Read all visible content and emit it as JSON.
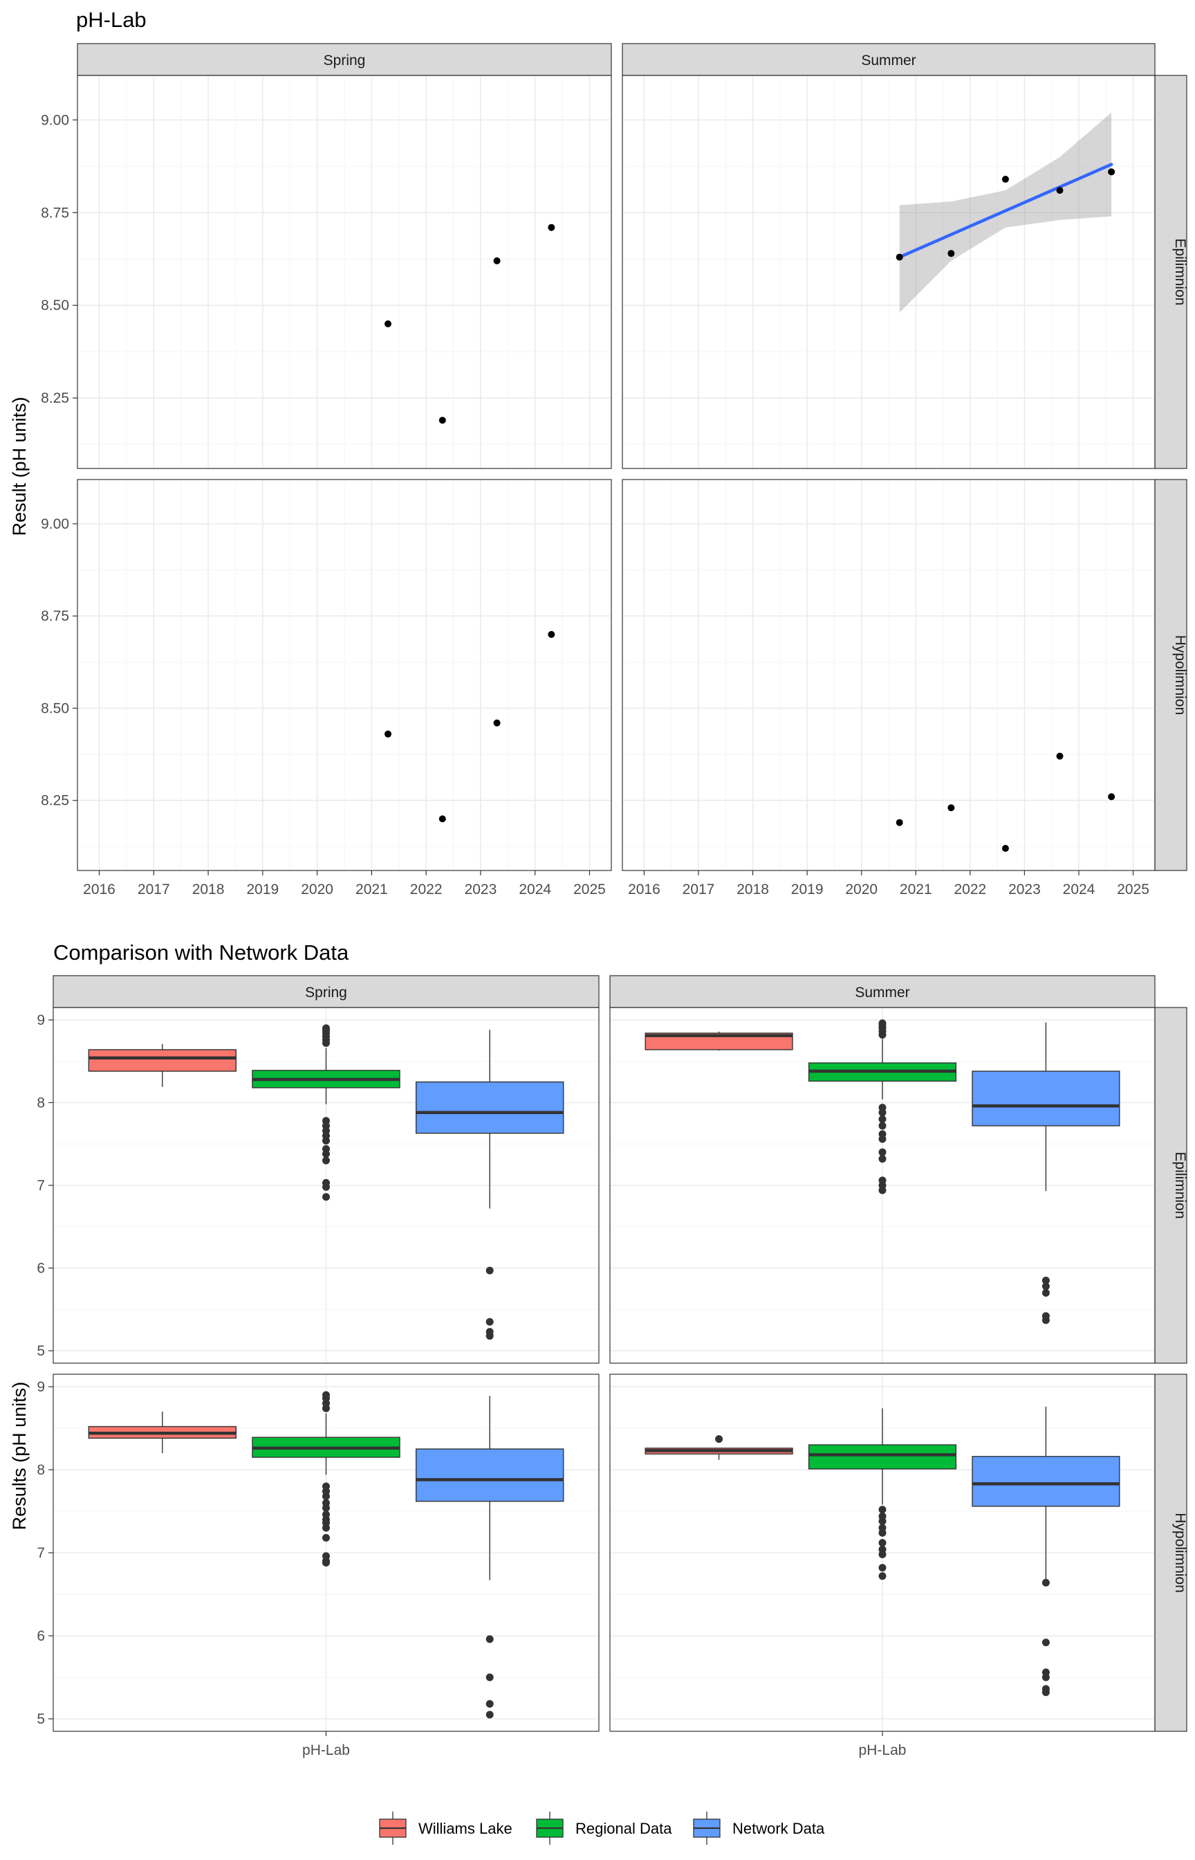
{
  "chart_data": [
    {
      "type": "scatter",
      "title": "pH-Lab",
      "ylabel": "Result (pH units)",
      "xlabel": "",
      "x_ticks": [
        "2016",
        "2017",
        "2018",
        "2019",
        "2020",
        "2021",
        "2022",
        "2023",
        "2024",
        "2025"
      ],
      "xlim": [
        2015.6,
        2025.4
      ],
      "y_ticks": [
        "8.25",
        "8.50",
        "8.75",
        "9.00"
      ],
      "ylim": [
        8.06,
        9.12
      ],
      "grid": true,
      "columns": [
        "Spring",
        "Summer"
      ],
      "rows": [
        "Epilimnion",
        "Hypolimnion"
      ],
      "panels": [
        {
          "col": "Spring",
          "row": "Epilimnion",
          "points": [
            {
              "x": 2021.3,
              "y": 8.45
            },
            {
              "x": 2022.3,
              "y": 8.19
            },
            {
              "x": 2023.3,
              "y": 8.62
            },
            {
              "x": 2024.3,
              "y": 8.71
            }
          ]
        },
        {
          "col": "Summer",
          "row": "Epilimnion",
          "points": [
            {
              "x": 2020.7,
              "y": 8.63
            },
            {
              "x": 2021.65,
              "y": 8.64
            },
            {
              "x": 2022.65,
              "y": 8.84
            },
            {
              "x": 2023.65,
              "y": 8.81
            },
            {
              "x": 2024.6,
              "y": 8.86
            }
          ],
          "trend": {
            "x": [
              2020.7,
              2024.6
            ],
            "y": [
              8.63,
              8.88
            ],
            "ci_x": [
              2020.7,
              2021.65,
              2022.65,
              2023.65,
              2024.6
            ],
            "ci_lower": [
              8.48,
              8.62,
              8.71,
              8.73,
              8.74
            ],
            "ci_upper": [
              8.77,
              8.78,
              8.81,
              8.9,
              9.02
            ]
          }
        },
        {
          "col": "Spring",
          "row": "Hypolimnion",
          "points": [
            {
              "x": 2021.3,
              "y": 8.43
            },
            {
              "x": 2022.3,
              "y": 8.2
            },
            {
              "x": 2023.3,
              "y": 8.46
            },
            {
              "x": 2024.3,
              "y": 8.7
            }
          ]
        },
        {
          "col": "Summer",
          "row": "Hypolimnion",
          "points": [
            {
              "x": 2020.7,
              "y": 8.19
            },
            {
              "x": 2021.65,
              "y": 8.23
            },
            {
              "x": 2022.65,
              "y": 8.12
            },
            {
              "x": 2023.65,
              "y": 8.37
            },
            {
              "x": 2024.6,
              "y": 8.26
            }
          ]
        }
      ]
    },
    {
      "type": "boxplot",
      "title": "Comparison with Network Data",
      "ylabel": "Results (pH units)",
      "x_tick": "pH-Lab",
      "y_ticks": [
        "5",
        "6",
        "7",
        "8",
        "9"
      ],
      "ylim": [
        4.85,
        9.15
      ],
      "grid": true,
      "columns": [
        "Spring",
        "Summer"
      ],
      "rows": [
        "Epilimnion",
        "Hypolimnion"
      ],
      "legend": {
        "position": "bottom",
        "entries": [
          {
            "name": "Williams Lake",
            "color": "#F8766D"
          },
          {
            "name": "Regional Data",
            "color": "#00BA38"
          },
          {
            "name": "Network Data",
            "color": "#619CFF"
          }
        ]
      },
      "panels": [
        {
          "col": "Spring",
          "row": "Epilimnion",
          "boxes": [
            {
              "series": "Williams Lake",
              "whisker_low": 8.19,
              "q1": 8.38,
              "median": 8.54,
              "q3": 8.64,
              "whisker_high": 8.71,
              "outliers": []
            },
            {
              "series": "Regional Data",
              "whisker_low": 7.98,
              "q1": 8.18,
              "median": 8.28,
              "q3": 8.39,
              "whisker_high": 8.66,
              "outliers": [
                8.72,
                8.76,
                8.8,
                8.84,
                8.87,
                8.9,
                7.78,
                7.72,
                7.66,
                7.6,
                7.54,
                7.44,
                7.38,
                7.3,
                7.03,
                6.98,
                6.86
              ]
            },
            {
              "series": "Network Data",
              "whisker_low": 6.72,
              "q1": 7.63,
              "median": 7.88,
              "q3": 8.25,
              "whisker_high": 8.88,
              "outliers": [
                5.97,
                5.35,
                5.23,
                5.18
              ]
            }
          ]
        },
        {
          "col": "Summer",
          "row": "Epilimnion",
          "boxes": [
            {
              "series": "Williams Lake",
              "whisker_low": 8.63,
              "q1": 8.64,
              "median": 8.81,
              "q3": 8.84,
              "whisker_high": 8.86,
              "outliers": []
            },
            {
              "series": "Regional Data",
              "whisker_low": 8.04,
              "q1": 8.26,
              "median": 8.38,
              "q3": 8.48,
              "whisker_high": 8.77,
              "outliers": [
                8.82,
                8.86,
                8.9,
                8.93,
                8.96,
                7.94,
                7.88,
                7.8,
                7.72,
                7.62,
                7.56,
                7.4,
                7.32,
                7.06,
                7.0,
                6.94
              ]
            },
            {
              "series": "Network Data",
              "whisker_low": 6.93,
              "q1": 7.72,
              "median": 7.96,
              "q3": 8.38,
              "whisker_high": 8.97,
              "outliers": [
                5.85,
                5.78,
                5.7,
                5.42,
                5.37
              ]
            }
          ]
        },
        {
          "col": "Spring",
          "row": "Hypolimnion",
          "boxes": [
            {
              "series": "Williams Lake",
              "whisker_low": 8.2,
              "q1": 8.38,
              "median": 8.44,
              "q3": 8.52,
              "whisker_high": 8.7,
              "outliers": []
            },
            {
              "series": "Regional Data",
              "whisker_low": 7.94,
              "q1": 8.15,
              "median": 8.26,
              "q3": 8.39,
              "whisker_high": 8.68,
              "outliers": [
                8.74,
                8.8,
                8.86,
                8.9,
                7.8,
                7.74,
                7.68,
                7.6,
                7.54,
                7.46,
                7.4,
                7.36,
                7.3,
                7.18,
                6.96,
                6.9,
                6.88
              ]
            },
            {
              "series": "Network Data",
              "whisker_low": 6.67,
              "q1": 7.62,
              "median": 7.88,
              "q3": 8.25,
              "whisker_high": 8.89,
              "outliers": [
                5.96,
                5.5,
                5.18,
                5.05
              ]
            }
          ]
        },
        {
          "col": "Summer",
          "row": "Hypolimnion",
          "boxes": [
            {
              "series": "Williams Lake",
              "whisker_low": 8.12,
              "q1": 8.19,
              "median": 8.23,
              "q3": 8.26,
              "whisker_high": 8.26,
              "outliers": [
                8.37
              ]
            },
            {
              "series": "Regional Data",
              "whisker_low": 7.58,
              "q1": 8.01,
              "median": 8.18,
              "q3": 8.3,
              "whisker_high": 8.74,
              "outliers": [
                7.52,
                7.44,
                7.38,
                7.3,
                7.24,
                7.12,
                7.04,
                6.98,
                6.82,
                6.72
              ]
            },
            {
              "series": "Network Data",
              "whisker_low": 6.67,
              "q1": 7.56,
              "median": 7.83,
              "q3": 8.16,
              "whisker_high": 8.76,
              "outliers": [
                6.64,
                5.92,
                5.56,
                5.5,
                5.36,
                5.32
              ]
            }
          ]
        }
      ]
    }
  ]
}
